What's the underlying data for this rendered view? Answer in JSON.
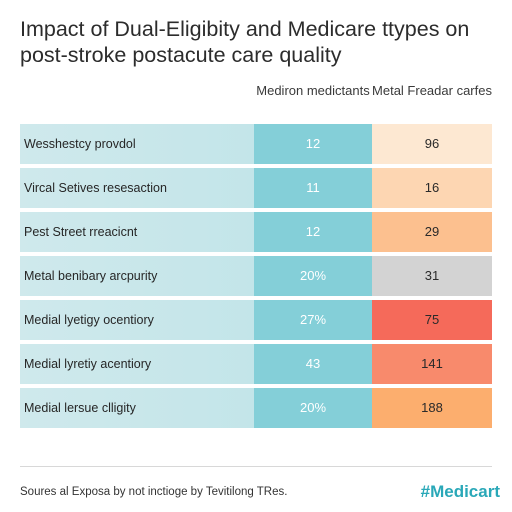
{
  "title": "Impact of Dual-Eligibity and Medicare ttypes on post-stroke postacute care quality",
  "source": "Soures al Exposa by not inctioge by Tevitilong TRes.",
  "hashtag": "#Medicart",
  "colors": {
    "v1_cell": "#84cfd8",
    "label_cell": "#c8e7ea",
    "accent": "#2aa8b8"
  },
  "chart_data": {
    "type": "table",
    "columns": [
      "Mediron medictants",
      "Metal Freadar carfes"
    ],
    "rows": [
      {
        "label": "Wesshestcy provdol",
        "v1": "12",
        "v2": "96",
        "v2_color": "#fde8d2"
      },
      {
        "label": "Vircal Setives resesaction",
        "v1": "11",
        "v2": "16",
        "v2_color": "#fdd6b2"
      },
      {
        "label": "Pest Street rreacicnt",
        "v1": "12",
        "v2": "29",
        "v2_color": "#fcc08f"
      },
      {
        "label": "Metal benibary arcpurity",
        "v1": "20%",
        "v2": "31",
        "v2_color": "#d3d3d3"
      },
      {
        "label": "Medial lyetigy ocentiory",
        "v1": "27%",
        "v2": "75",
        "v2_color": "#f56a5a"
      },
      {
        "label": "Medial lyretiy acentiory",
        "v1": "43",
        "v2": "141",
        "v2_color": "#f88a6c"
      },
      {
        "label": "Medial lersue clligity",
        "v1": "20%",
        "v2": "188",
        "v2_color": "#fcae6e"
      }
    ]
  }
}
